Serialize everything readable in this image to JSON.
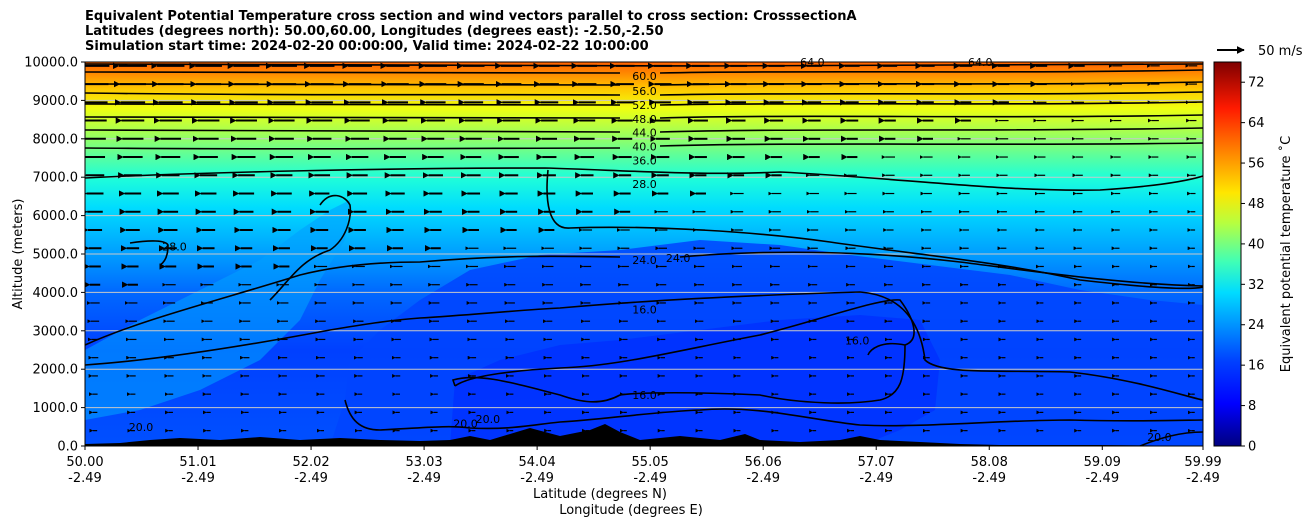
{
  "title_lines": [
    "Equivalent Potential Temperature cross section and wind vectors parallel to cross section: CrosssectionA",
    "Latitudes (degrees north): 50.00,60.00, Longitudes (degrees east): -2.50,-2.50",
    "Simulation start time: 2024-02-20 00:00:00, Valid time: 2024-02-22 10:00:00"
  ],
  "wind_key": {
    "label": "50 m/s"
  },
  "colors": {
    "contour": "#000000",
    "terrain": "#000000",
    "grid": "#c8c8c8"
  },
  "chart_data": {
    "type": "heatmap",
    "title": "Equivalent Potential Temperature cross section and wind vectors parallel to cross section: CrosssectionA",
    "xlabel": "Latitude (degrees N)",
    "xlabel2": "Longitude (degrees E)",
    "ylabel": "Altitude (meters)",
    "ylim": [
      0,
      10000
    ],
    "xlim": [
      50.0,
      59.99
    ],
    "grid": "horizontal",
    "yticks": [
      0,
      1000,
      2000,
      3000,
      4000,
      5000,
      6000,
      7000,
      8000,
      9000,
      10000
    ],
    "ytick_labels": [
      "0.0",
      "1000.0",
      "2000.0",
      "3000.0",
      "4000.0",
      "5000.0",
      "6000.0",
      "7000.0",
      "8000.0",
      "9000.0",
      "10000.0"
    ],
    "xticks": [
      50.0,
      51.01,
      52.02,
      53.03,
      54.04,
      55.05,
      56.06,
      57.07,
      58.08,
      59.09,
      59.99
    ],
    "xtick_labels_lat": [
      "50.00",
      "51.01",
      "52.02",
      "53.03",
      "54.04",
      "55.05",
      "56.06",
      "57.07",
      "58.08",
      "59.09",
      "59.99"
    ],
    "xtick_labels_lon": [
      "-2.49",
      "-2.49",
      "-2.49",
      "-2.49",
      "-2.49",
      "-2.49",
      "-2.49",
      "-2.49",
      "-2.49",
      "-2.49",
      "-2.49"
    ],
    "colorbar": {
      "label": "Equivalent potential temperature $^\\circ$C",
      "label_display": "Equivalent potential temperature ˚C",
      "range": [
        0,
        76
      ],
      "ticks": [
        0,
        8,
        16,
        24,
        32,
        40,
        48,
        56,
        64,
        72
      ],
      "colormap": "jet",
      "legend_placement": "right"
    },
    "contour_levels": [
      16,
      20,
      24,
      28,
      36,
      40,
      44,
      48,
      52,
      56,
      60,
      64
    ],
    "contour_labels": [
      {
        "text": "60.0",
        "lat": 55.0,
        "alt": 9640
      },
      {
        "text": "56.0",
        "lat": 55.0,
        "alt": 9240
      },
      {
        "text": "52.0",
        "lat": 55.0,
        "alt": 8880
      },
      {
        "text": "48.0",
        "lat": 55.0,
        "alt": 8520
      },
      {
        "text": "44.0",
        "lat": 55.0,
        "alt": 8160
      },
      {
        "text": "40.0",
        "lat": 55.0,
        "alt": 7800
      },
      {
        "text": "36.0",
        "lat": 55.0,
        "alt": 7440
      },
      {
        "text": "28.0",
        "lat": 55.0,
        "alt": 6820
      },
      {
        "text": "24.0",
        "lat": 55.0,
        "alt": 4850
      },
      {
        "text": "24.0",
        "lat": 55.3,
        "alt": 4900
      },
      {
        "text": "16.0",
        "lat": 55.0,
        "alt": 3550
      },
      {
        "text": "16.0",
        "lat": 55.0,
        "alt": 1330
      },
      {
        "text": "16.0",
        "lat": 56.9,
        "alt": 2750
      },
      {
        "text": "28.0",
        "lat": 50.8,
        "alt": 5200
      },
      {
        "text": "20.0",
        "lat": 50.5,
        "alt": 500
      },
      {
        "text": "20.0",
        "lat": 53.4,
        "alt": 580
      },
      {
        "text": "20.0",
        "lat": 53.6,
        "alt": 700
      },
      {
        "text": "20.0",
        "lat": 59.6,
        "alt": 230
      },
      {
        "text": "64.0",
        "lat": 56.5,
        "alt": 10000
      },
      {
        "text": "64.0",
        "lat": 58.0,
        "alt": 10000
      }
    ],
    "wind": {
      "direction": "toward lower latitude (leftward)",
      "max_speed_upper_levels_ms": 30,
      "speed_decreases_with_height": "down"
    }
  }
}
